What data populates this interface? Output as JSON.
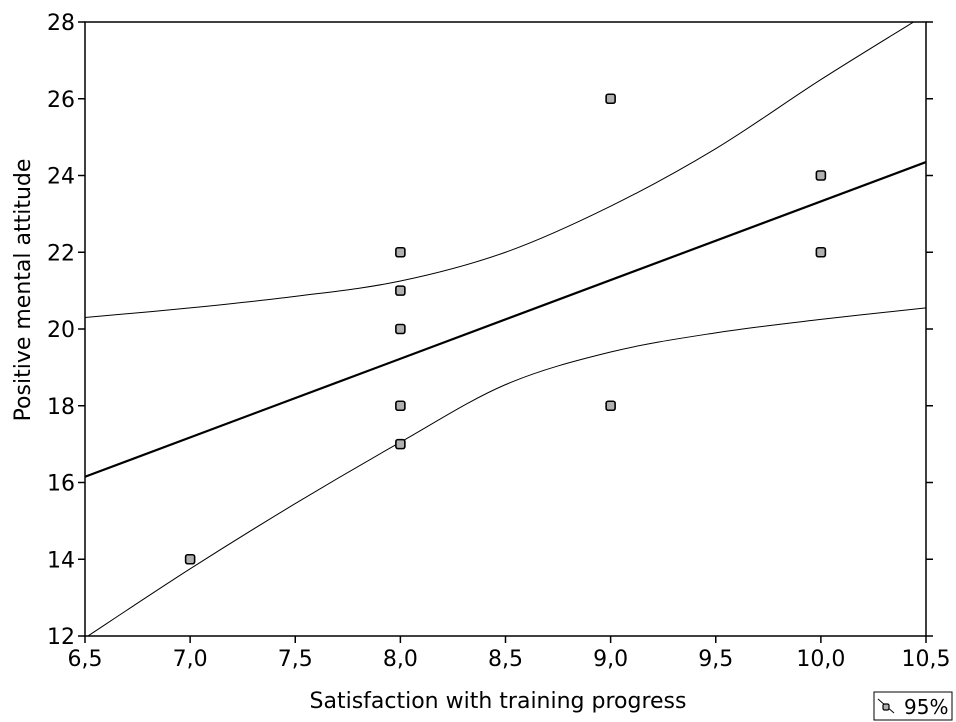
{
  "chart_data": {
    "type": "scatter",
    "title": "",
    "xlabel": "Satisfaction with training progress",
    "ylabel": "Positive mental attitude",
    "xlim": [
      6.5,
      10.5
    ],
    "ylim": [
      12,
      28
    ],
    "x_ticks": [
      6.5,
      7.0,
      7.5,
      8.0,
      8.5,
      9.0,
      9.5,
      10.0,
      10.5
    ],
    "x_tick_labels": [
      "6,5",
      "7,0",
      "7,5",
      "8,0",
      "8,5",
      "9,0",
      "9,5",
      "10,0",
      "10,5"
    ],
    "y_ticks": [
      12,
      14,
      16,
      18,
      20,
      22,
      24,
      26,
      28
    ],
    "y_tick_labels": [
      "12",
      "14",
      "16",
      "18",
      "20",
      "22",
      "24",
      "26",
      "28"
    ],
    "grid": false,
    "points": [
      {
        "x": 7.0,
        "y": 14
      },
      {
        "x": 8.0,
        "y": 17
      },
      {
        "x": 8.0,
        "y": 18
      },
      {
        "x": 8.0,
        "y": 20
      },
      {
        "x": 8.0,
        "y": 21
      },
      {
        "x": 8.0,
        "y": 22
      },
      {
        "x": 9.0,
        "y": 18
      },
      {
        "x": 9.0,
        "y": 26
      },
      {
        "x": 10.0,
        "y": 22
      },
      {
        "x": 10.0,
        "y": 24
      }
    ],
    "regression_line": {
      "x": [
        6.5,
        10.5
      ],
      "y": [
        16.15,
        24.35
      ]
    },
    "ci_upper": {
      "x": [
        6.5,
        7.0,
        7.5,
        8.0,
        8.5,
        9.0,
        9.5,
        10.0,
        10.5
      ],
      "y": [
        20.3,
        20.55,
        20.85,
        21.25,
        22.0,
        23.2,
        24.7,
        26.5,
        28.2
      ]
    },
    "ci_lower": {
      "x": [
        6.5,
        7.0,
        7.5,
        8.0,
        8.5,
        9.0,
        9.5,
        10.0,
        10.5
      ],
      "y": [
        11.95,
        13.75,
        15.45,
        17.05,
        18.55,
        19.4,
        19.9,
        20.25,
        20.55
      ]
    },
    "legend": {
      "label": "95%",
      "placement": "bottom-right"
    },
    "colors": {
      "line": "#000000",
      "marker_fill": "#b0b0b0",
      "marker_stroke": "#000000"
    }
  }
}
